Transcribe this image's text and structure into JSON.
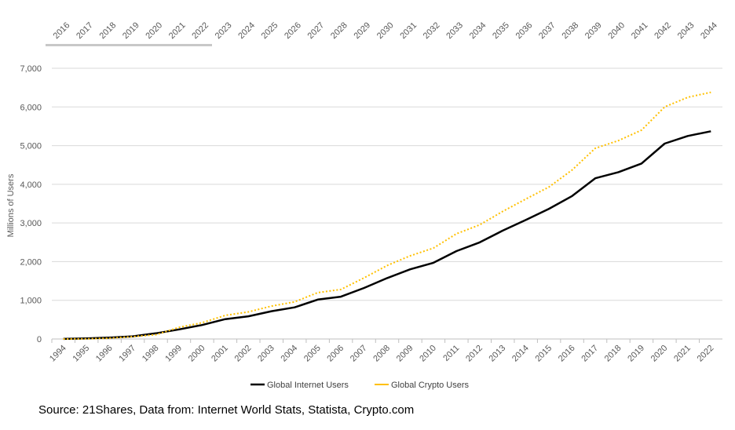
{
  "chart_data": {
    "type": "line",
    "title": "",
    "xlabel": "",
    "ylabel": "Millions of Users",
    "ylim": [
      0,
      7000
    ],
    "yticks": [
      0,
      1000,
      2000,
      3000,
      4000,
      5000,
      6000,
      7000
    ],
    "ytick_labels": [
      "0",
      "1,000",
      "2,000",
      "3,000",
      "4,000",
      "5,000",
      "6,000",
      "7,000"
    ],
    "grid": true,
    "legend_position": "bottom-center",
    "x": [
      "1994",
      "1995",
      "1996",
      "1997",
      "1998",
      "1999",
      "2000",
      "2001",
      "2002",
      "2003",
      "2004",
      "2005",
      "2006",
      "2007",
      "2008",
      "2009",
      "2010",
      "2011",
      "2012",
      "2013",
      "2014",
      "2015",
      "2016",
      "2017",
      "2018",
      "2019",
      "2020",
      "2021",
      "2022"
    ],
    "secondary_x": [
      "2016",
      "2017",
      "2018",
      "2019",
      "2020",
      "2021",
      "2022",
      "2023",
      "2024",
      "2025",
      "2026",
      "2027",
      "2028",
      "2029",
      "2030",
      "2031",
      "2032",
      "2033",
      "2034",
      "2035",
      "2036",
      "2037",
      "2038",
      "2039",
      "2040",
      "2041",
      "2042",
      "2043",
      "2044"
    ],
    "series": [
      {
        "name": "Global Internet Users",
        "color": "#000000",
        "style": "solid",
        "values": [
          3,
          16,
          36,
          70,
          147,
          248,
          361,
          513,
          587,
          719,
          817,
          1018,
          1093,
          1319,
          1574,
          1802,
          1971,
          2272,
          2497,
          2802,
          3079,
          3367,
          3696,
          4156,
          4313,
          4536,
          5053,
          5250,
          5370
        ]
      },
      {
        "name": "Global Crypto Users",
        "color": "#FFC000",
        "style": "dotted",
        "values": [
          0,
          5,
          20,
          60,
          110,
          300,
          420,
          610,
          700,
          850,
          960,
          1200,
          1280,
          1580,
          1900,
          2150,
          2350,
          2720,
          2950,
          3300,
          3620,
          3930,
          4370,
          4930,
          5130,
          5400,
          6000,
          6250,
          6380
        ]
      }
    ]
  },
  "source": "Source: 21Shares, Data from: Internet World Stats, Statista, Crypto.com"
}
